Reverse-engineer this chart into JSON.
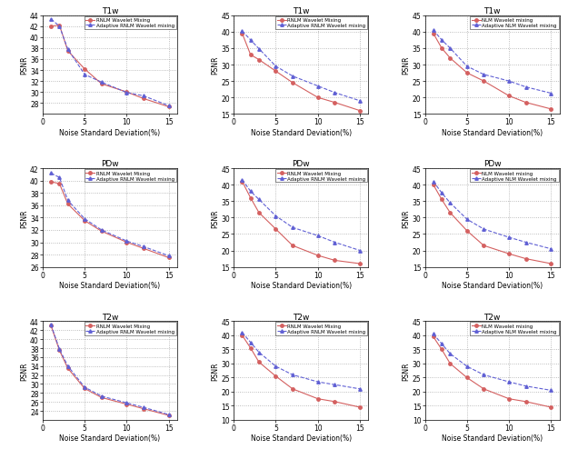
{
  "x": [
    1,
    2,
    3,
    5,
    7,
    10,
    12,
    15
  ],
  "subplots": [
    {
      "title": "T1w",
      "ylabel": "PSNR",
      "xlabel": "Noise Standard Deviation(%)",
      "legend1": "RNLM Wavelet Mixing",
      "legend2": "Adaptive RNLM Wavelet mixing",
      "ylim": [
        26,
        44
      ],
      "yticks": [
        28,
        30,
        32,
        34,
        36,
        38,
        40,
        42,
        44
      ],
      "xticks": [
        0,
        5,
        10,
        15
      ],
      "line1": [
        42.0,
        42.2,
        37.5,
        34.2,
        31.5,
        30.0,
        28.8,
        27.3
      ],
      "line2": [
        43.3,
        42.0,
        37.8,
        33.2,
        31.8,
        29.9,
        29.3,
        27.5
      ],
      "type": "rnlm"
    },
    {
      "title": "T1w",
      "ylabel": "PSNR",
      "xlabel": "Noise Standard Deviation(%)",
      "legend1": "RNLM Wavelet Mixing",
      "legend2": "Adaptive RNLM Wavelet mixing",
      "ylim": [
        15,
        45
      ],
      "yticks": [
        15,
        20,
        25,
        30,
        35,
        40,
        45
      ],
      "xticks": [
        0,
        5,
        10,
        15
      ],
      "line1": [
        39.5,
        33.0,
        31.5,
        28.0,
        24.5,
        20.0,
        18.5,
        16.0
      ],
      "line2": [
        40.2,
        37.5,
        34.8,
        29.5,
        26.5,
        23.5,
        21.5,
        19.0
      ],
      "type": "rnlm"
    },
    {
      "title": "T1w",
      "ylabel": "PSNR",
      "xlabel": "Noise Standard Deviation(%)",
      "legend1": "NLM Wavelet mixing",
      "legend2": "Adaptive NLM Wavelet mixing",
      "ylim": [
        15,
        45
      ],
      "yticks": [
        15,
        20,
        25,
        30,
        35,
        40,
        45
      ],
      "xticks": [
        0,
        5,
        10,
        15
      ],
      "line1": [
        39.5,
        35.0,
        32.0,
        27.5,
        25.0,
        20.5,
        18.5,
        16.5
      ],
      "line2": [
        40.5,
        37.5,
        35.0,
        29.5,
        27.0,
        25.0,
        23.2,
        21.3
      ],
      "type": "nlm"
    },
    {
      "title": "PDw",
      "ylabel": "PSNR",
      "xlabel": "Noise Standard Deviation(%)",
      "legend1": "RNLM Wavelet Mixing",
      "legend2": "Adaptive RNLM Wavelet mixing",
      "ylim": [
        26,
        42
      ],
      "yticks": [
        26,
        28,
        30,
        32,
        34,
        36,
        38,
        40,
        42
      ],
      "xticks": [
        0,
        5,
        10,
        15
      ],
      "line1": [
        39.8,
        39.5,
        36.2,
        33.5,
        31.8,
        30.0,
        29.0,
        27.5
      ],
      "line2": [
        41.2,
        40.5,
        36.8,
        33.8,
        32.0,
        30.2,
        29.3,
        27.8
      ],
      "type": "rnlm"
    },
    {
      "title": "PDw",
      "ylabel": "PSNR",
      "xlabel": "Noise Standard Deviation(%)",
      "legend1": "RNLM Wavelet Mixing",
      "legend2": "Adaptive RNLM Wavelet mixing",
      "ylim": [
        15,
        45
      ],
      "yticks": [
        15,
        20,
        25,
        30,
        35,
        40,
        45
      ],
      "xticks": [
        0,
        5,
        10,
        15
      ],
      "line1": [
        41.0,
        36.0,
        31.5,
        26.5,
        21.5,
        18.5,
        17.0,
        16.0
      ],
      "line2": [
        41.5,
        38.0,
        35.5,
        30.5,
        27.0,
        24.5,
        22.5,
        20.0
      ],
      "type": "rnlm"
    },
    {
      "title": "PDw",
      "ylabel": "PSNR",
      "xlabel": "Noise Standard Deviation(%)",
      "legend1": "NLM Wavelet mixing",
      "legend2": "Adaptive NLM Wavelet mixing",
      "ylim": [
        15,
        45
      ],
      "yticks": [
        15,
        20,
        25,
        30,
        35,
        40,
        45
      ],
      "xticks": [
        0,
        5,
        10,
        15
      ],
      "line1": [
        40.0,
        35.5,
        31.5,
        26.0,
        21.5,
        19.0,
        17.5,
        16.0
      ],
      "line2": [
        41.0,
        37.5,
        34.5,
        29.5,
        26.5,
        24.0,
        22.5,
        20.5
      ],
      "type": "nlm"
    },
    {
      "title": "T2w",
      "ylabel": "PSNR",
      "xlabel": "Noise Standard Deviation(%)",
      "legend1": "RNLM Wavelet Mixing",
      "legend2": "Adaptive RNLM Wavelet mixing",
      "ylim": [
        22,
        44
      ],
      "yticks": [
        24,
        26,
        28,
        30,
        32,
        34,
        36,
        38,
        40,
        42,
        44
      ],
      "xticks": [
        0,
        5,
        10,
        15
      ],
      "line1": [
        43.0,
        37.5,
        33.5,
        29.0,
        27.0,
        25.5,
        24.5,
        23.0
      ],
      "line2": [
        43.2,
        37.8,
        34.0,
        29.3,
        27.3,
        25.8,
        24.8,
        23.2
      ],
      "type": "rnlm"
    },
    {
      "title": "T2w",
      "ylabel": "PSNR",
      "xlabel": "Noise Standard Deviation(%)",
      "legend1": "RNLM Wavelet Mixing",
      "legend2": "Adaptive RNLM Wavelet mixing",
      "ylim": [
        10,
        45
      ],
      "yticks": [
        10,
        15,
        20,
        25,
        30,
        35,
        40,
        45
      ],
      "xticks": [
        0,
        5,
        10,
        15
      ],
      "line1": [
        40.0,
        35.5,
        30.5,
        25.5,
        21.0,
        17.5,
        16.5,
        14.5
      ],
      "line2": [
        41.0,
        37.5,
        34.0,
        29.0,
        26.0,
        23.5,
        22.5,
        21.0
      ],
      "type": "rnlm"
    },
    {
      "title": "T2w",
      "ylabel": "PSNR",
      "xlabel": "Noise Standard Deviation(%)",
      "legend1": "NLM Wavelet mixing",
      "legend2": "Adaptive NLM Wavelet mixing",
      "ylim": [
        10,
        45
      ],
      "yticks": [
        10,
        15,
        20,
        25,
        30,
        35,
        40,
        45
      ],
      "xticks": [
        0,
        5,
        10,
        15
      ],
      "line1": [
        39.5,
        35.0,
        30.0,
        25.0,
        21.0,
        17.5,
        16.5,
        14.5
      ],
      "line2": [
        40.5,
        37.0,
        33.5,
        29.0,
        26.0,
        23.5,
        22.0,
        20.5
      ],
      "type": "nlm"
    }
  ],
  "color_line1": "#d46060",
  "color_line2": "#6060d4",
  "marker_line1": "o",
  "marker_line2": "^",
  "line1_style": "-",
  "line2_style": "--",
  "figsize": [
    6.25,
    5.06
  ],
  "dpi": 100
}
